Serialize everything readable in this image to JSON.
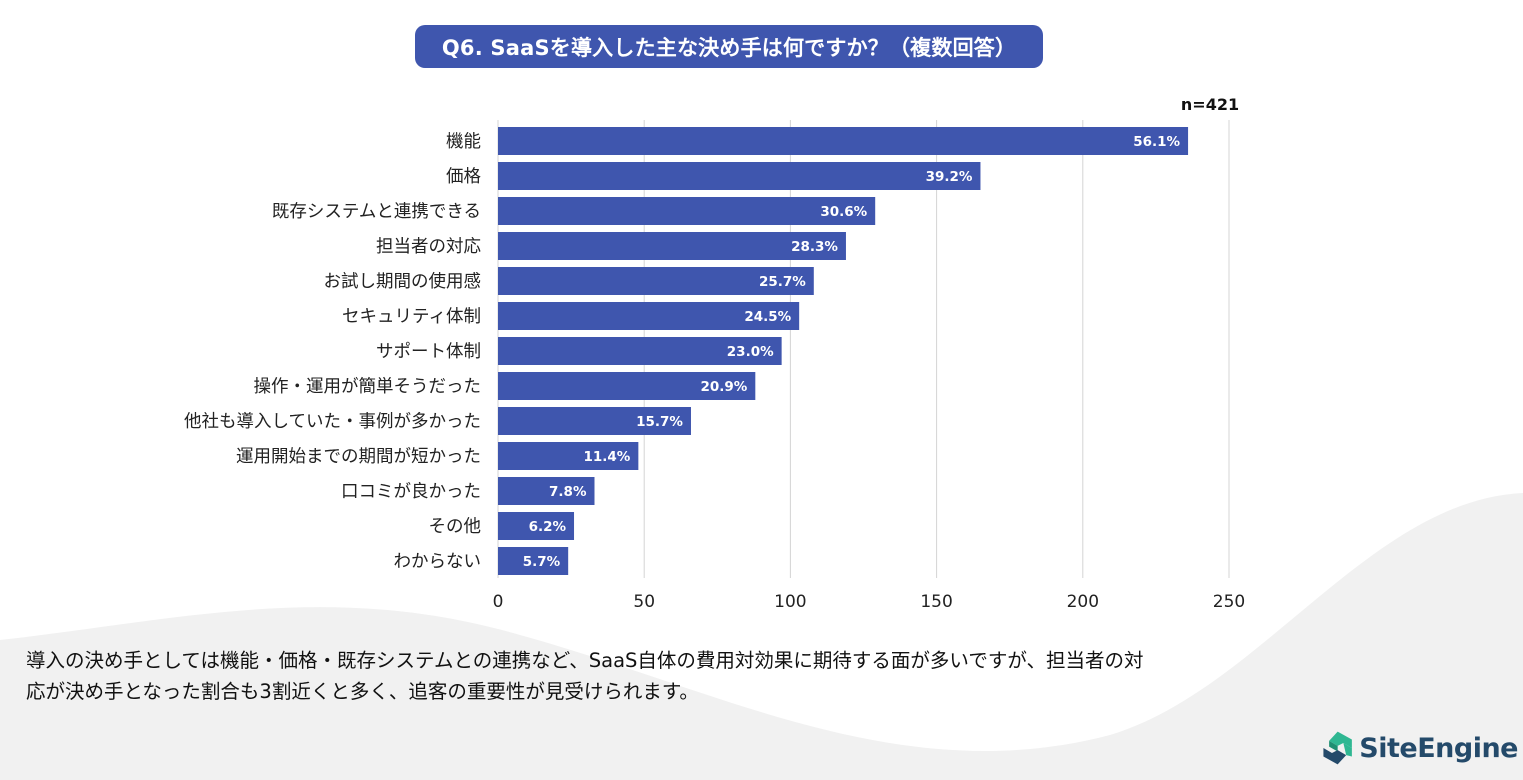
{
  "header": {
    "title": "Q6. SaaSを導入した主な決め手は何ですか？（複数回答）",
    "sample_size": "n=421"
  },
  "colors": {
    "bar": "#3f56ae",
    "title_bg": "#3f56ae",
    "grid": "#d4d4d4",
    "wave": "#f1f1f1",
    "logo_green": "#2fb792",
    "logo_navy": "#244a6a"
  },
  "chart_data": {
    "type": "bar",
    "orientation": "horizontal",
    "categories": [
      "機能",
      "価格",
      "既存システムと連携できる",
      "担当者の対応",
      "お試し期間の使用感",
      "セキュリティ体制",
      "サポート体制",
      "操作・運用が簡単そうだった",
      "他社も導入していた・事例が多かった",
      "運用開始までの期間が短かった",
      "口コミが良かった",
      "その他",
      "わからない"
    ],
    "values": [
      236,
      165,
      129,
      119,
      108,
      103,
      97,
      88,
      66,
      48,
      33,
      26,
      24
    ],
    "data_labels": [
      "56.1%",
      "39.2%",
      "30.6%",
      "28.3%",
      "25.7%",
      "24.5%",
      "23.0%",
      "20.9%",
      "15.7%",
      "11.4%",
      "7.8%",
      "6.2%",
      "5.7%"
    ],
    "xlim": [
      0,
      250
    ],
    "x_ticks": [
      0,
      50,
      100,
      150,
      200,
      250
    ],
    "grid": true,
    "title": "Q6. SaaSを導入した主な決め手は何ですか？（複数回答）",
    "xlabel": "",
    "ylabel": ""
  },
  "caption": {
    "line1": "導入の決め手としては機能・価格・既存システムとの連携など、SaaS自体の費用対効果に期待する面が多いですが、担当者の対",
    "line2": "応が決め手となった割合も3割近くと多く、追客の重要性が見受けられます。"
  },
  "logo": {
    "text": "SiteEngine"
  }
}
